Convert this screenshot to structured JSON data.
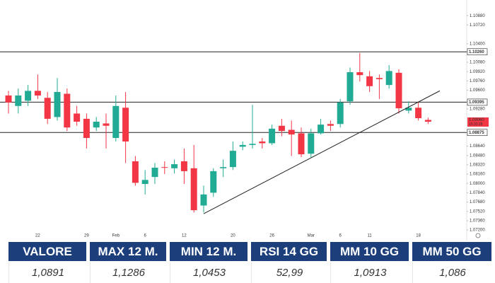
{
  "chart_data": {
    "type": "candlestick",
    "categories": [
      null,
      null,
      null,
      "22",
      null,
      null,
      null,
      null,
      "29",
      null,
      null,
      "Feb",
      null,
      null,
      "6",
      null,
      null,
      null,
      "12",
      null,
      null,
      null,
      null,
      "20",
      null,
      null,
      null,
      "26",
      null,
      null,
      null,
      "Mar",
      null,
      null,
      "6",
      null,
      null,
      "11",
      null,
      null,
      null,
      null,
      "18",
      null
    ],
    "open": [
      1.0951,
      1.0933,
      1.0942,
      1.0959,
      1.0947,
      1.0914,
      1.0954,
      1.092,
      1.0911,
      1.0896,
      1.0903,
      1.0878,
      1.093,
      1.0838,
      1.0799,
      1.0811,
      1.0828,
      1.0826,
      1.0838,
      1.0826,
      1.0762,
      1.0784,
      1.0826,
      1.0828,
      1.0863,
      1.0866,
      1.0872,
      1.0869,
      1.0899,
      1.0892,
      1.0886,
      1.0851,
      1.0886,
      1.0902,
      1.0902,
      1.0941,
      1.0991,
      1.0984,
      1.0981,
      1.0969,
      1.099,
      1.0925,
      1.093,
      1.0909
    ],
    "high": [
      1.0959,
      1.0963,
      1.0969,
      1.0987,
      1.0957,
      1.0981,
      1.0963,
      1.0933,
      1.092,
      1.0914,
      1.092,
      1.0951,
      1.0957,
      1.0847,
      1.0823,
      1.0835,
      1.0838,
      1.0841,
      1.086,
      1.0866,
      1.0796,
      1.0826,
      1.0841,
      1.0872,
      1.0872,
      1.0935,
      1.0878,
      1.0901,
      1.0911,
      1.0908,
      1.0896,
      1.0894,
      1.0911,
      1.0908,
      1.0945,
      1.0999,
      1.1024,
      1.0993,
      1.0987,
      1.1003,
      1.0996,
      1.0941,
      1.0939,
      1.0913
    ],
    "low": [
      1.092,
      1.092,
      1.0933,
      1.0945,
      1.0902,
      1.0908,
      1.089,
      1.0899,
      1.086,
      1.089,
      1.086,
      1.0872,
      1.0835,
      1.0796,
      1.0781,
      1.0799,
      1.0816,
      1.0817,
      1.0799,
      1.075,
      1.075,
      1.0777,
      1.0811,
      1.0823,
      1.0857,
      1.086,
      1.086,
      1.0866,
      1.0881,
      1.0847,
      1.0845,
      1.0845,
      1.0884,
      1.089,
      1.0896,
      1.0935,
      1.0975,
      1.0957,
      1.0945,
      1.0963,
      1.092,
      1.092,
      1.0908,
      1.0902
    ],
    "close": [
      1.0939,
      1.0951,
      1.0959,
      1.0951,
      1.0911,
      1.0957,
      1.0896,
      1.0906,
      1.0878,
      1.0906,
      1.0899,
      1.0933,
      1.0872,
      1.0801,
      1.0806,
      1.0827,
      1.0827,
      1.0833,
      1.0821,
      1.0754,
      1.0781,
      1.0821,
      1.0828,
      1.0856,
      1.0866,
      1.0868,
      1.0869,
      1.0894,
      1.089,
      1.0884,
      1.085,
      1.0886,
      1.0901,
      1.0899,
      1.0939,
      1.0991,
      1.0986,
      1.0967,
      1.0979,
      1.0993,
      1.0929,
      1.093,
      1.0912,
      1.0906
    ],
    "up_color": "#22ab94",
    "down_color": "#f23645",
    "ylim": [
      1.0714,
      1.1115
    ],
    "yticks": [
      {
        "value": 1.1088,
        "label": "1.10880"
      },
      {
        "value": 1.1072,
        "label": "1.10720"
      },
      {
        "value": 1.104,
        "label": "1.10400"
      },
      {
        "value": 1.1008,
        "label": "1.10080"
      },
      {
        "value": 1.0992,
        "label": "1.09920"
      },
      {
        "value": 1.0976,
        "label": "1.09760"
      },
      {
        "value": 1.096,
        "label": "1.09600"
      },
      {
        "value": 1.0928,
        "label": "1.09280"
      },
      {
        "value": 1.0864,
        "label": "1.08640"
      },
      {
        "value": 1.0848,
        "label": "1.08480"
      },
      {
        "value": 1.0832,
        "label": "1.08320"
      },
      {
        "value": 1.0816,
        "label": "1.08160"
      },
      {
        "value": 1.08,
        "label": "1.08000"
      },
      {
        "value": 1.0784,
        "label": "1.07840"
      },
      {
        "value": 1.0768,
        "label": "1.07680"
      },
      {
        "value": 1.0752,
        "label": "1.07520"
      },
      {
        "value": 1.0736,
        "label": "1.07360"
      },
      {
        "value": 1.072,
        "label": "1.07200"
      }
    ],
    "price_lines": [
      {
        "value": 1.1026,
        "label": "1.10260"
      },
      {
        "value": 1.09395,
        "label": "1.09395"
      },
      {
        "value": 1.08875,
        "label": "1.08875"
      }
    ],
    "last_price": {
      "value": 1.0906,
      "label": "1.09060",
      "timer": "15:33:28"
    },
    "trendline": {
      "x": [
        20,
        44.2
      ],
      "values": [
        1.0748,
        1.0959
      ]
    },
    "grid": false
  },
  "table": {
    "headers": [
      "VALORE",
      "MAX 12 M.",
      "MIN 12 M.",
      "RSI 14 GG",
      "MM 10 GG",
      "MM 50 GG"
    ],
    "rows": [
      [
        "1,0891",
        "1,1286",
        "1,0453",
        "52,99",
        "1,0913",
        "1,086"
      ]
    ]
  }
}
